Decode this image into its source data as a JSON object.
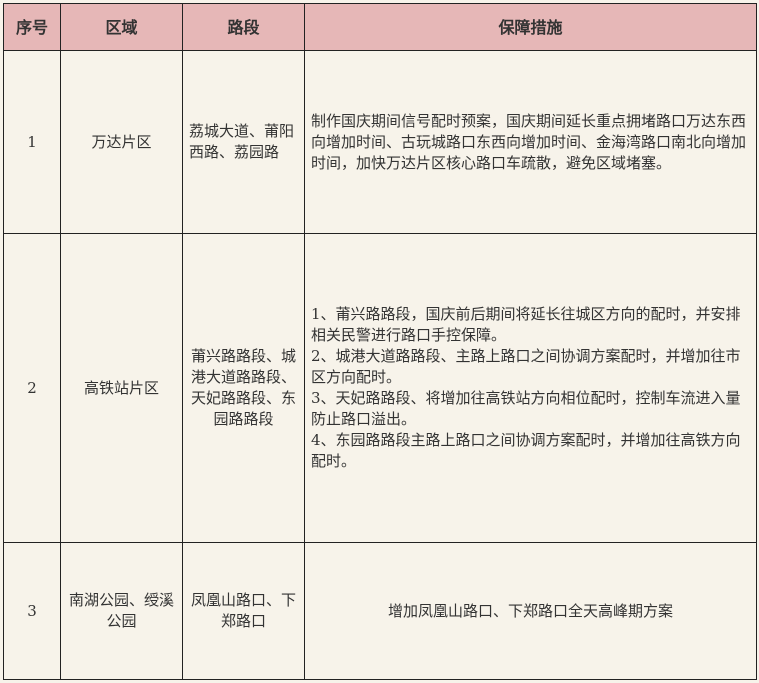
{
  "headers": [
    "序号",
    "区域",
    "路段",
    "保障措施"
  ],
  "rows": [
    {
      "no": "1",
      "area": "万达片区",
      "roads": "荔城大道、莆阳西路、荔园路",
      "measures": [
        "制作国庆期间信号配时预案，国庆期间延长重点拥堵路口万达东西向增加时间、古玩城路口东西向增加时间、金海湾路口南北向增加时间，加快万达片区核心路口车疏散，避免区域堵塞。"
      ]
    },
    {
      "no": "2",
      "area": "高铁站片区",
      "roads": "莆兴路路段、城港大道路路段、天妃路路段、东园路路段",
      "measures": [
        "1、莆兴路路段，国庆前后期间将延长往城区方向的配时，并安排相关民警进行路口手控保障。",
        "2、城港大道路路段、主路上路口之间协调方案配时，并增加往市区方向配时。",
        "3、天妃路路段、将增加往高铁站方向相位配时，控制车流进入量防止路口溢出。",
        "4、东园路路段主路上路口之间协调方案配时，并增加往高铁方向配时。"
      ]
    },
    {
      "no": "3",
      "area": "南湖公园、绶溪公园",
      "roads": "凤凰山路口、下郑路口",
      "measures": [
        "增加凤凰山路口、下郑路口全天高峰期方案"
      ]
    }
  ]
}
